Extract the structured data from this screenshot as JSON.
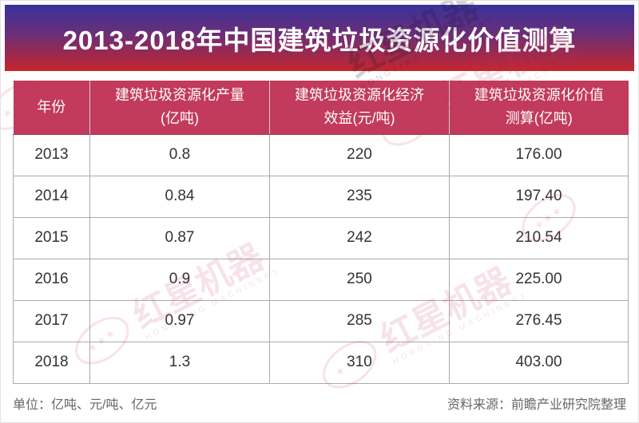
{
  "page": {
    "title": "2013-2018年中国建筑垃圾资源化价值测算",
    "footer_left": "单位：亿吨、元/吨、亿元",
    "footer_right": "资料来源：前瞻产业研究院整理"
  },
  "colors": {
    "banner_gradient_top": "#38329B",
    "banner_gradient_bottom": "#C5262C",
    "table_header_bg": "#C23A5C",
    "table_header_text": "#FFFFFF",
    "cell_text": "#333333",
    "grid_line": "#AAAAAA",
    "footer_text": "#666666",
    "watermark_red": "#C13A5C"
  },
  "table": {
    "columns": [
      {
        "label": "年份"
      },
      {
        "label": "建筑垃圾资源化产量\n(亿吨)"
      },
      {
        "label": "建筑垃圾资源化经济\n效益(元/吨)"
      },
      {
        "label": "建筑垃圾资源化价值\n测算(亿吨)"
      }
    ],
    "rows": [
      [
        "2013",
        "0.8",
        "220",
        "176.00"
      ],
      [
        "2014",
        "0.84",
        "235",
        "197.40"
      ],
      [
        "2015",
        "0.87",
        "242",
        "210.54"
      ],
      [
        "2016",
        "0.9",
        "250",
        "225.00"
      ],
      [
        "2017",
        "0.97",
        "285",
        "276.45"
      ],
      [
        "2018",
        "1.3",
        "310",
        "403.00"
      ]
    ]
  },
  "chart_data": {
    "type": "table",
    "title": "2013-2018年中国建筑垃圾资源化价值测算",
    "columns": [
      "年份",
      "建筑垃圾资源化产量(亿吨)",
      "建筑垃圾资源化经济效益(元/吨)",
      "建筑垃圾资源化价值测算(亿吨)"
    ],
    "rows": [
      [
        2013,
        0.8,
        220,
        176.0
      ],
      [
        2014,
        0.84,
        235,
        197.4
      ],
      [
        2015,
        0.87,
        242,
        210.54
      ],
      [
        2016,
        0.9,
        250,
        225.0
      ],
      [
        2017,
        0.97,
        285,
        276.45
      ],
      [
        2018,
        1.3,
        310,
        403.0
      ]
    ],
    "units_note": "单位：亿吨、元/吨、亿元",
    "source": "资料来源：前瞻产业研究院整理"
  },
  "watermark": {
    "logo_stars": "★★★",
    "text_cn": "红星机器",
    "text_en": "HONGXING MACHINERY"
  }
}
